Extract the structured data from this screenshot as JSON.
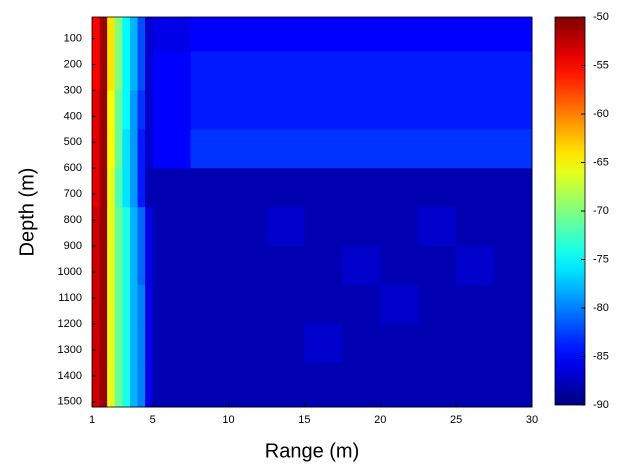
{
  "chart_data": {
    "type": "heatmap",
    "xlabel": "Range (m)",
    "ylabel": "Depth (m)",
    "xlim": [
      1,
      30
    ],
    "ylim": [
      17,
      1520
    ],
    "y_inverted": true,
    "xticks": [
      1,
      5,
      10,
      15,
      20,
      25,
      30
    ],
    "yticks": [
      100,
      200,
      300,
      400,
      500,
      600,
      700,
      800,
      900,
      1000,
      1100,
      1200,
      1300,
      1400,
      1500
    ],
    "colormap": "jet",
    "clim": [
      -90,
      -50
    ],
    "cticks": [
      -50,
      -55,
      -60,
      -65,
      -70,
      -75,
      -80,
      -85,
      -90
    ],
    "xbins": [
      1,
      1.5,
      2,
      2.5,
      3,
      3.5,
      4,
      4.5,
      5,
      7.5,
      10,
      12.5,
      15,
      17.5,
      20,
      22.5,
      25,
      27.5,
      30
    ],
    "ybins": [
      17,
      150,
      300,
      450,
      600,
      750,
      900,
      1050,
      1200,
      1350,
      1520
    ],
    "z": [
      [
        -55,
        -51,
        -64,
        -70,
        -75,
        -78,
        -82,
        -87,
        -86,
        -85,
        -85,
        -85,
        -85,
        -85,
        -85,
        -85,
        -85,
        -85
      ],
      [
        -55,
        -51,
        -64,
        -70,
        -75,
        -78,
        -82,
        -87,
        -85,
        -84,
        -84,
        -84,
        -84,
        -84,
        -84,
        -84,
        -84,
        -84
      ],
      [
        -54,
        -51,
        -65,
        -71,
        -75,
        -79,
        -83,
        -87,
        -85,
        -84,
        -84,
        -84,
        -84,
        -84,
        -84,
        -84,
        -84,
        -84
      ],
      [
        -54,
        -51,
        -65,
        -71,
        -76,
        -79,
        -84,
        -87,
        -85,
        -83,
        -83,
        -83,
        -83,
        -83,
        -83,
        -83,
        -83,
        -83
      ],
      [
        -54,
        -51,
        -66,
        -72,
        -76,
        -79,
        -84,
        -88,
        -88,
        -88,
        -88,
        -88,
        -88,
        -88,
        -88,
        -88,
        -88,
        -88
      ],
      [
        -53,
        -51,
        -66,
        -71,
        -74,
        -78,
        -81,
        -86,
        -88,
        -88,
        -88,
        -87,
        -88,
        -88,
        -88,
        -87,
        -88,
        -88
      ],
      [
        -53,
        -51,
        -66,
        -71,
        -74,
        -78,
        -81,
        -86,
        -88,
        -88,
        -88,
        -88,
        -88,
        -87,
        -88,
        -88,
        -87,
        -88
      ],
      [
        -53,
        -51,
        -66,
        -71,
        -74,
        -78,
        -80,
        -86,
        -88,
        -88,
        -88,
        -88,
        -88,
        -88,
        -87,
        -88,
        -88,
        -88
      ],
      [
        -53,
        -51,
        -66,
        -71,
        -74,
        -78,
        -80,
        -86,
        -88,
        -88,
        -88,
        -88,
        -87,
        -88,
        -88,
        -88,
        -88,
        -88
      ],
      [
        -53,
        -51,
        -66,
        -71,
        -74,
        -78,
        -80,
        -86,
        -88,
        -88,
        -88,
        -88,
        -88,
        -88,
        -88,
        -88,
        -88,
        -88
      ]
    ]
  }
}
